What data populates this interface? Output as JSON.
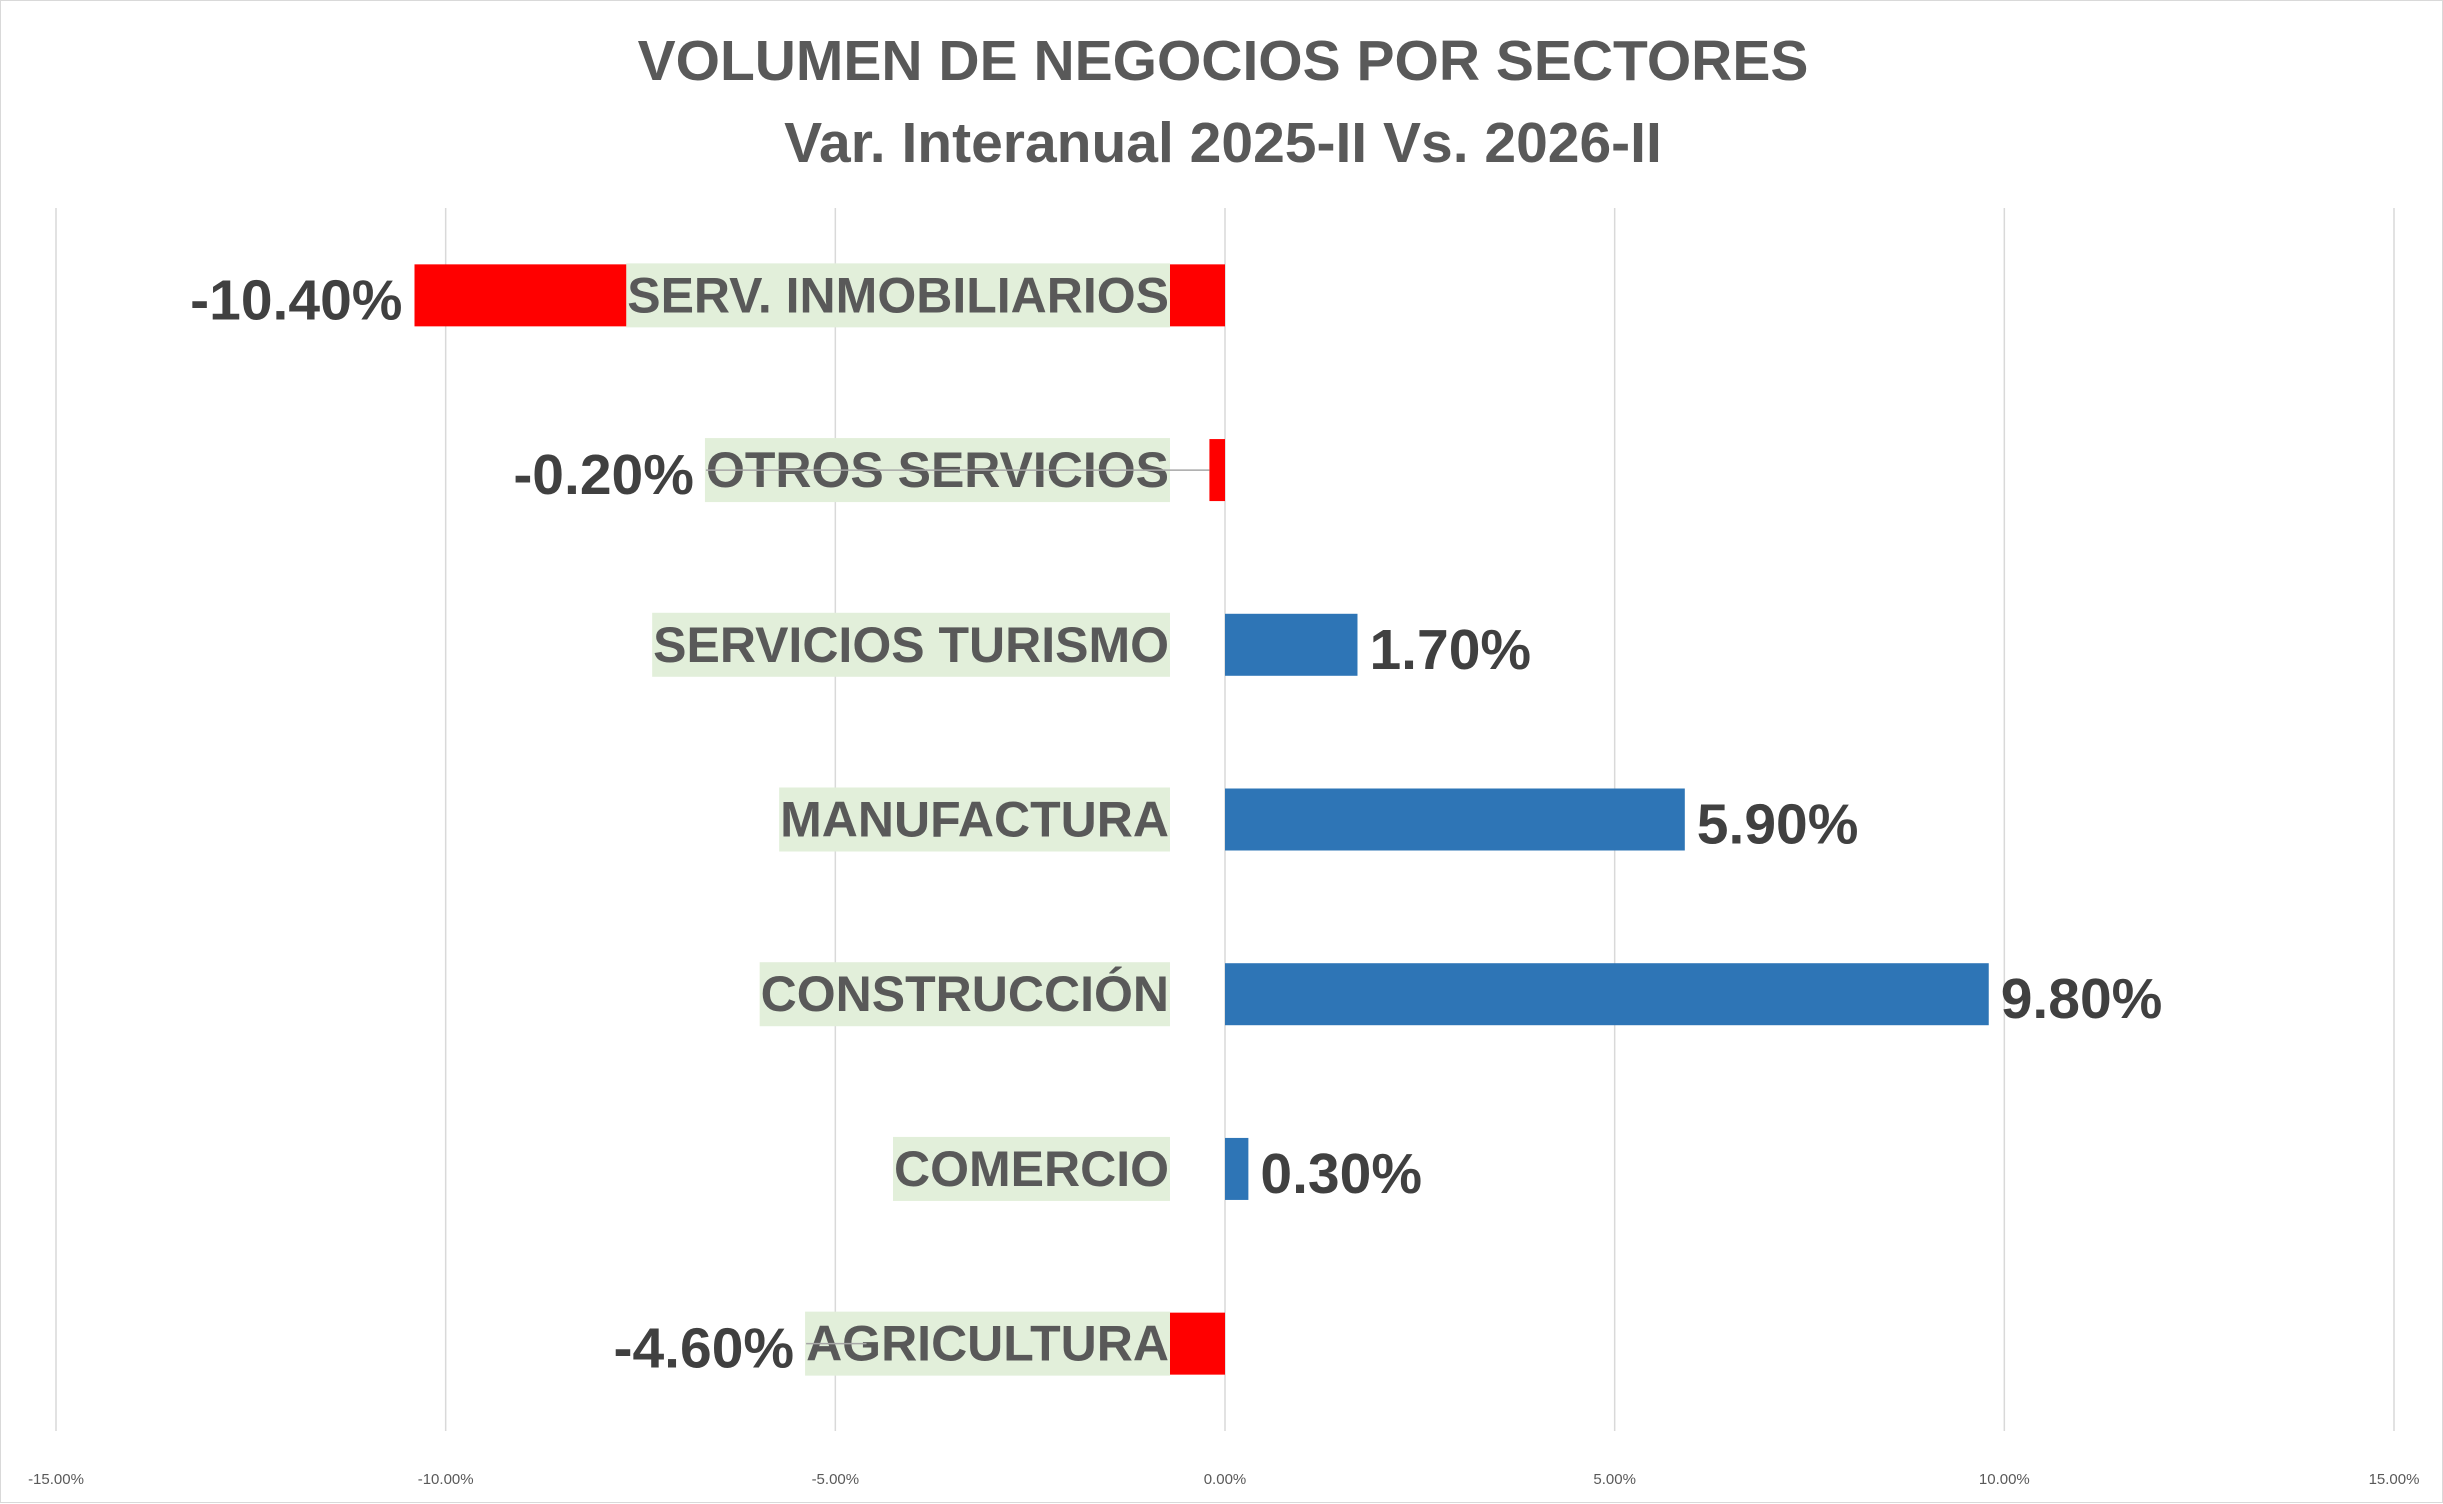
{
  "chart_data": {
    "type": "bar",
    "orientation": "horizontal",
    "title": "VOLUMEN DE NEGOCIOS POR SECTORES",
    "subtitle": "Var. Interanual 2025-II Vs. 2026-II",
    "categories": [
      "SERV. INMOBILIARIOS",
      "OTROS SERVICIOS",
      "SERVICIOS TURISMO",
      "MANUFACTURA",
      "CONSTRUCCIÓN",
      "COMERCIO",
      "AGRICULTURA"
    ],
    "values": [
      -10.4,
      -0.2,
      1.7,
      5.9,
      9.8,
      0.3,
      -4.6
    ],
    "value_labels": [
      "-10.40%",
      "-0.20%",
      "1.70%",
      "5.90%",
      "9.80%",
      "0.30%",
      "-4.60%"
    ],
    "xlim": [
      -15,
      15
    ],
    "x_ticks": [
      -15,
      -10,
      -5,
      0,
      5,
      10,
      15
    ],
    "x_tick_labels": [
      "-15.00%",
      "-10.00%",
      "-5.00%",
      "0.00%",
      "5.00%",
      "10.00%",
      "15.00%"
    ],
    "grid": "vertical",
    "legend": "none",
    "colors": {
      "positive": "#2E75B6",
      "negative": "#FF0000",
      "category_label_bg": "#E2EFDA",
      "text": "#404040",
      "title": "#595959",
      "gridline": "#D9D9D9"
    }
  }
}
